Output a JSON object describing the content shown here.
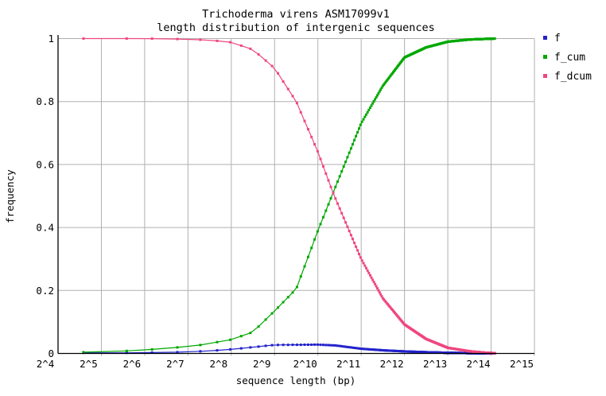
{
  "figure": {
    "title_line1": "Trichoderma virens ASM17099v1",
    "title_line2": "length distribution of intergenic sequences",
    "x_axis_label": "sequence length (bp)",
    "y_axis_label": "frequency"
  },
  "legend": {
    "position": "outside-right",
    "entries": [
      {
        "label": "f",
        "color": "#2323cc"
      },
      {
        "label": "f_cum",
        "color": "#00a800"
      },
      {
        "label": "f_dcum",
        "color": "#ef477f"
      }
    ]
  },
  "colors": {
    "grid": "#b0b0b0",
    "axis": "#000000",
    "background": "#ffffff"
  },
  "chart_data": {
    "type": "line",
    "title": "Trichoderma virens ASM17099v1 — length distribution of intergenic sequences",
    "xlabel": "sequence length (bp)",
    "ylabel": "frequency",
    "x_scale": "log2",
    "xlim_log2": [
      4,
      15
    ],
    "ylim": [
      0,
      1
    ],
    "x_ticks": [
      "2^4",
      "2^5",
      "2^6",
      "2^7",
      "2^8",
      "2^9",
      "2^10",
      "2^11",
      "2^12",
      "2^13",
      "2^14",
      "2^15"
    ],
    "y_ticks": [
      {
        "value": 0,
        "label": "0"
      },
      {
        "value": 0.2,
        "label": "0.2"
      },
      {
        "value": 0.4,
        "label": "0.4"
      },
      {
        "value": 0.6,
        "label": "0.6"
      },
      {
        "value": 0.8,
        "label": "0.8"
      },
      {
        "value": 1,
        "label": "1"
      }
    ],
    "grid": true,
    "legend_position": "outside-right",
    "marker": "filled-square",
    "x_bins_bp": {
      "initial": [
        24,
        48,
        72,
        108
      ],
      "start": 156,
      "step": 48,
      "end": 17388
    },
    "series": [
      {
        "name": "f",
        "color": "#2323cc",
        "anchors_log2x_y": [
          [
            4.585,
            0.002
          ],
          [
            5.5,
            0.002
          ],
          [
            6.5,
            0.003
          ],
          [
            7.0,
            0.005
          ],
          [
            7.5,
            0.008
          ],
          [
            8.0,
            0.013
          ],
          [
            8.5,
            0.02
          ],
          [
            9.0,
            0.027
          ],
          [
            9.5,
            0.0275
          ],
          [
            10.0,
            0.028
          ],
          [
            10.4,
            0.0255
          ],
          [
            11.0,
            0.015
          ],
          [
            11.5,
            0.01
          ],
          [
            12.0,
            0.0065
          ],
          [
            12.5,
            0.004
          ],
          [
            13.0,
            0.002
          ],
          [
            13.5,
            0.001
          ],
          [
            14.086,
            0.0005
          ]
        ]
      },
      {
        "name": "f_cum",
        "color": "#00a800",
        "anchors_log2x_y": [
          [
            4.585,
            0.004
          ],
          [
            5.0,
            0.005
          ],
          [
            5.585,
            0.008
          ],
          [
            6.17,
            0.013
          ],
          [
            6.75,
            0.019
          ],
          [
            7.3,
            0.027
          ],
          [
            8.0,
            0.044
          ],
          [
            8.5,
            0.068
          ],
          [
            9.0,
            0.135
          ],
          [
            9.5,
            0.205
          ],
          [
            10.0,
            0.39
          ],
          [
            10.35,
            0.51
          ],
          [
            11.0,
            0.731
          ],
          [
            11.5,
            0.85
          ],
          [
            12.0,
            0.94
          ],
          [
            12.5,
            0.972
          ],
          [
            13.0,
            0.99
          ],
          [
            13.5,
            0.997
          ],
          [
            14.086,
            1.0
          ]
        ]
      },
      {
        "name": "f_dcum",
        "color": "#ef477f",
        "anchors_log2x_y": [
          [
            4.585,
            1.0
          ],
          [
            6.0,
            1.0
          ],
          [
            7.0,
            0.998
          ],
          [
            7.5,
            0.995
          ],
          [
            8.0,
            0.988
          ],
          [
            8.5,
            0.965
          ],
          [
            9.0,
            0.906
          ],
          [
            9.5,
            0.8
          ],
          [
            10.0,
            0.64
          ],
          [
            10.35,
            0.51
          ],
          [
            11.0,
            0.3
          ],
          [
            11.5,
            0.175
          ],
          [
            12.0,
            0.092
          ],
          [
            12.5,
            0.046
          ],
          [
            13.0,
            0.018
          ],
          [
            13.5,
            0.007
          ],
          [
            13.9,
            0.002
          ],
          [
            14.086,
            0.001
          ]
        ]
      }
    ]
  }
}
